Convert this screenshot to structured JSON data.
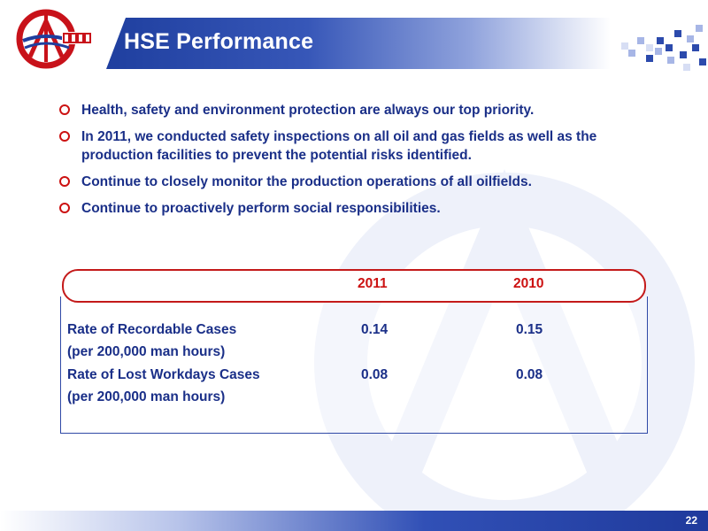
{
  "slide": {
    "title": "HSE Performance",
    "page_number": "22",
    "colors": {
      "title_bar": "#1f3f9f",
      "text": "#1a2f88",
      "accent": "#cc1111"
    }
  },
  "bullets": [
    "Health, safety and environment protection are always our top priority.",
    "In 2011, we conducted safety inspections on all oil and gas fields as well as the production facilities to prevent the potential risks identified.",
    "Continue to closely monitor the production operations of all oilfields.",
    "Continue to proactively perform social responsibilities."
  ],
  "table": {
    "columns": [
      "2011",
      "2010"
    ],
    "rows": [
      {
        "label": "Rate of Recordable Cases",
        "sublabel": "(per 200,000 man hours)",
        "values": [
          "0.14",
          "0.15"
        ]
      },
      {
        "label": "Rate of Lost Workdays Cases",
        "sublabel": "(per 200,000 man hours)",
        "values": [
          "0.08",
          "0.08"
        ]
      }
    ]
  },
  "icons": {
    "logo": "cnooc-logo",
    "bullet": "hollow-circle-bullet"
  }
}
